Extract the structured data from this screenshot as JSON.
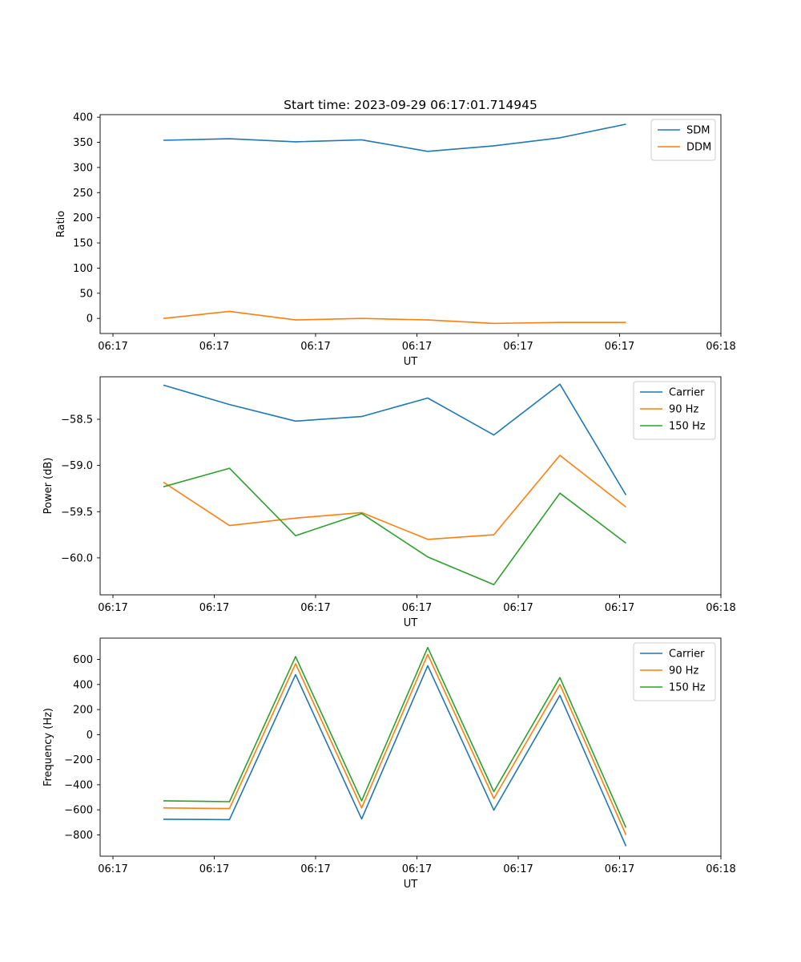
{
  "figure": {
    "title": "Start time: 2023-09-29 06:17:01.714945"
  },
  "chart_data": [
    {
      "type": "line",
      "xlabel": "UT",
      "ylabel": "Ratio",
      "x_tick_labels": [
        "06:17",
        "06:17",
        "06:17",
        "06:17",
        "06:17",
        "06:17",
        "06:18"
      ],
      "y_ticks": [
        0,
        50,
        100,
        150,
        200,
        250,
        300,
        350,
        400
      ],
      "y_tick_labels": [
        "0",
        "50",
        "100",
        "150",
        "200",
        "250",
        "300",
        "350",
        "400"
      ],
      "ylim": [
        -30,
        405
      ],
      "legend": "upper-right",
      "grid": false,
      "series": [
        {
          "name": "SDM",
          "color": "#1f77b4",
          "values": [
            354,
            357,
            351,
            355,
            332,
            343,
            359,
            386
          ]
        },
        {
          "name": "DDM",
          "color": "#ff7f0e",
          "values": [
            0,
            14,
            -3,
            0,
            -3,
            -10,
            -8,
            -8
          ]
        }
      ]
    },
    {
      "type": "line",
      "xlabel": "UT",
      "ylabel": "Power (dB)",
      "x_tick_labels": [
        "06:17",
        "06:17",
        "06:17",
        "06:17",
        "06:17",
        "06:17",
        "06:18"
      ],
      "y_ticks": [
        -60.0,
        -59.5,
        -59.0,
        -58.5
      ],
      "y_tick_labels": [
        "−60.0",
        "−59.5",
        "−59.0",
        "−58.5"
      ],
      "ylim": [
        -60.4,
        -58.04
      ],
      "legend": "upper-right",
      "grid": false,
      "series": [
        {
          "name": "Carrier",
          "color": "#1f77b4",
          "values": [
            -58.13,
            -58.34,
            -58.52,
            -58.47,
            -58.27,
            -58.67,
            -58.12,
            -59.32
          ]
        },
        {
          "name": "90 Hz",
          "color": "#ff7f0e",
          "values": [
            -59.18,
            -59.65,
            -59.57,
            -59.51,
            -59.8,
            -59.75,
            -58.89,
            -59.45
          ]
        },
        {
          "name": "150 Hz",
          "color": "#2ca02c",
          "values": [
            -59.23,
            -59.03,
            -59.76,
            -59.52,
            -59.99,
            -60.29,
            -59.3,
            -59.84
          ]
        }
      ]
    },
    {
      "type": "line",
      "xlabel": "UT",
      "ylabel": "Frequency (Hz)",
      "x_tick_labels": [
        "06:17",
        "06:17",
        "06:17",
        "06:17",
        "06:17",
        "06:17",
        "06:18"
      ],
      "y_ticks": [
        -800,
        -600,
        -400,
        -200,
        0,
        200,
        400,
        600
      ],
      "y_tick_labels": [
        "−800",
        "−600",
        "−400",
        "−200",
        "0",
        "200",
        "400",
        "600"
      ],
      "ylim": [
        -970,
        770
      ],
      "legend": "upper-right",
      "grid": false,
      "series": [
        {
          "name": "Carrier",
          "color": "#1f77b4",
          "values": [
            -675,
            -678,
            478,
            -673,
            550,
            -603,
            313,
            -890
          ]
        },
        {
          "name": "90 Hz",
          "color": "#ff7f0e",
          "values": [
            -585,
            -590,
            565,
            -585,
            640,
            -510,
            400,
            -800
          ]
        },
        {
          "name": "150 Hz",
          "color": "#2ca02c",
          "values": [
            -528,
            -535,
            622,
            -528,
            695,
            -455,
            455,
            -742
          ]
        }
      ]
    }
  ]
}
